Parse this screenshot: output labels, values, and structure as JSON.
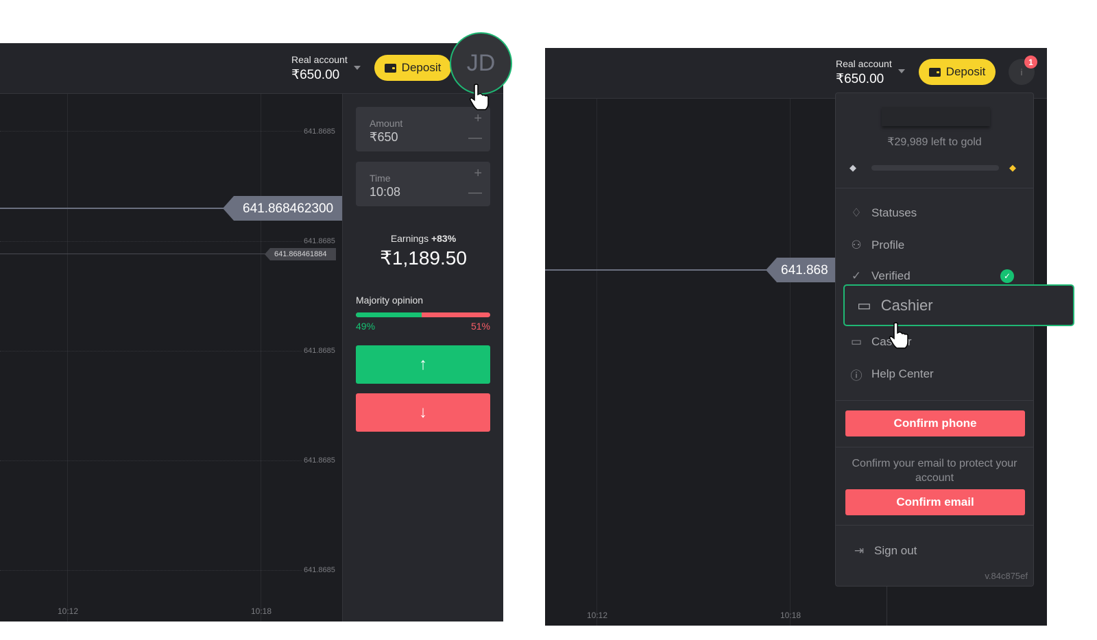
{
  "left": {
    "header": {
      "account_label": "Real account",
      "balance": "₹650.00",
      "deposit_label": "Deposit",
      "avatar_initials": "JD"
    },
    "chart": {
      "y_ticks": [
        "641.8685",
        "641.8685",
        "641.8685",
        "641.8685",
        "641.8685"
      ],
      "x_ticks": [
        "10:12",
        "10:18"
      ],
      "current_price": "641.868462300",
      "secondary_price": "641.868461884"
    },
    "sidebar": {
      "amount_label": "Amount",
      "amount_value": "₹650",
      "time_label": "Time",
      "time_value": "10:08",
      "earnings_label": "Earnings",
      "earnings_pct": "+83%",
      "earnings_value": "₹1,189.50",
      "majority_label": "Majority opinion",
      "up_pct": "49%",
      "down_pct": "51%",
      "up_fraction": 0.49,
      "plus": "+",
      "minus": "—"
    }
  },
  "right": {
    "header": {
      "account_label": "Real account",
      "balance": "₹650.00",
      "deposit_label": "Deposit",
      "avatar_initial": "i",
      "notification_count": "1"
    },
    "chart": {
      "current_price": "641.868",
      "x_ticks": [
        "10:12",
        "10:18"
      ]
    },
    "menu": {
      "gold_text": "₹29,989 left to gold",
      "gold_progress": 0,
      "items": [
        {
          "label": "Statuses",
          "icon": "diamond-icon"
        },
        {
          "label": "Profile",
          "icon": "user-icon"
        },
        {
          "label": "Verified",
          "icon": "check-circle-icon"
        },
        {
          "label": "Cashier",
          "icon": "wallet-icon"
        },
        {
          "label": "Help Center",
          "icon": "info-icon"
        }
      ],
      "confirm_phone": "Confirm phone",
      "email_note": "Confirm your email to protect your account",
      "confirm_email": "Confirm email",
      "sign_out": "Sign out",
      "version": "v.84c875ef"
    },
    "highlight": {
      "label": "Cashier"
    }
  },
  "colors": {
    "green": "#16c172",
    "red": "#f95d67",
    "yellow": "#f7d32b",
    "accent_ring": "#1fb874"
  }
}
